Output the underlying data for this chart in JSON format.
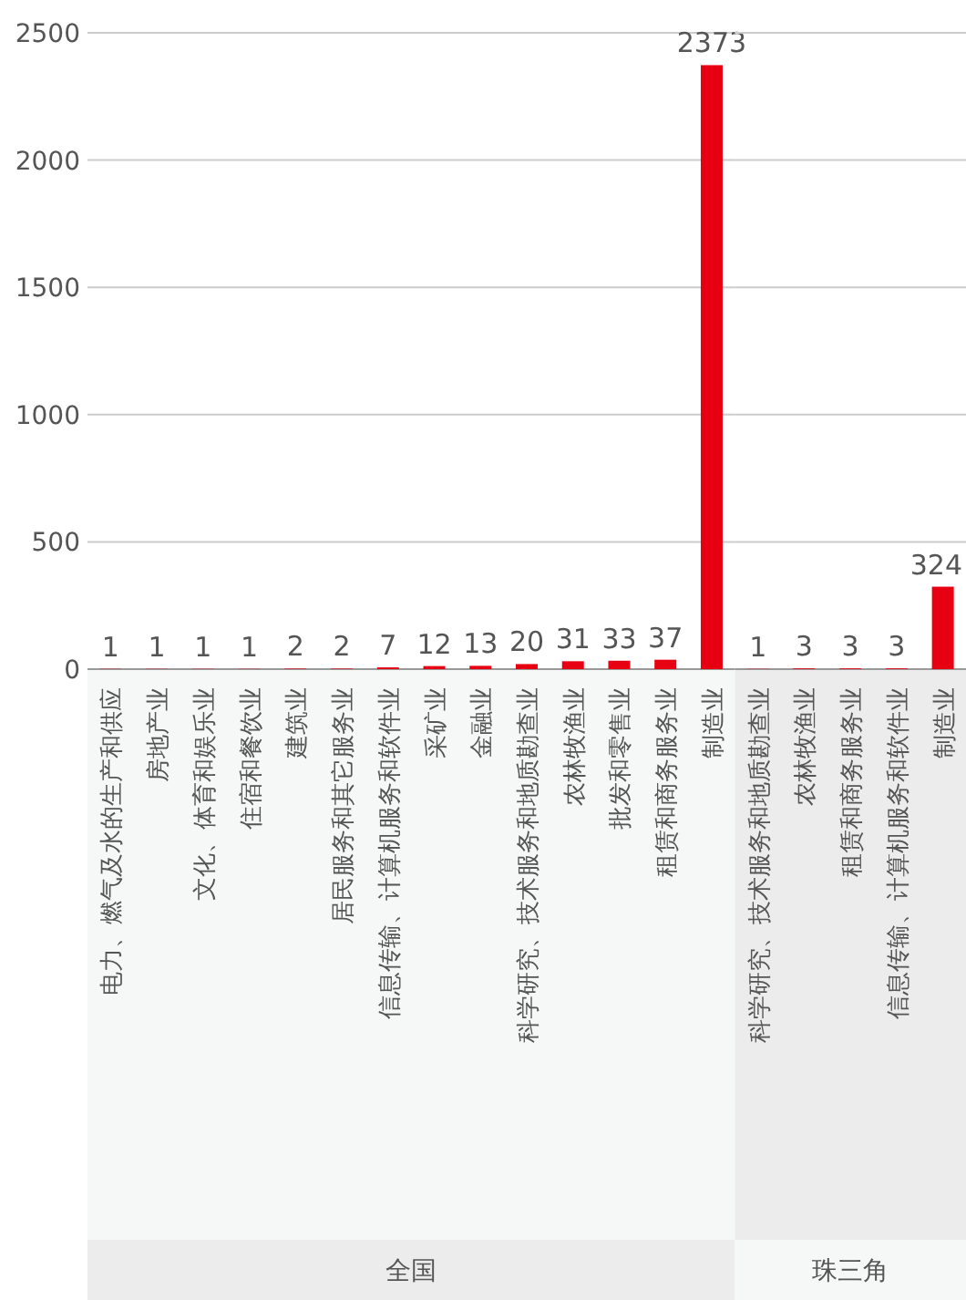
{
  "chart_data": [
    {
      "type": "bar",
      "xlabel": "全国",
      "categories": [
        "电力、燃气及水的生产和供应",
        "房地产业",
        "文化、体育和娱乐业",
        "住宿和餐饮业",
        "建筑业",
        "居民服务和其它服务业",
        "信息传输、计算机服务和软件业",
        "采矿业",
        "金融业",
        "科学研究、技术服务和地质勘查业",
        "农林牧渔业",
        "批发和零售业",
        "租赁和商务服务业",
        "制造业"
      ],
      "values": [
        1,
        1,
        1,
        1,
        2,
        2,
        7,
        12,
        13,
        20,
        31,
        33,
        37,
        2373
      ],
      "color": "#e60012",
      "ylim": [
        0,
        2500
      ],
      "yticks": [
        0,
        500,
        1000,
        1500,
        2000,
        2500
      ],
      "grid": "y",
      "data_labels": true
    },
    {
      "type": "bar",
      "xlabel": "珠三角",
      "categories": [
        "科学研究、技术服务和地质勘查业",
        "农林牧渔业",
        "租赁和商务服务业",
        "信息传输、计算机服务和软件业",
        "制造业"
      ],
      "values": [
        1,
        3,
        3,
        3,
        324
      ],
      "color": "#e60012",
      "ylim": [
        0,
        2500
      ],
      "yticks": [
        0,
        500,
        1000,
        1500,
        2000,
        2500
      ],
      "grid": "y",
      "data_labels": true,
      "tick_labels": "x"
    }
  ]
}
